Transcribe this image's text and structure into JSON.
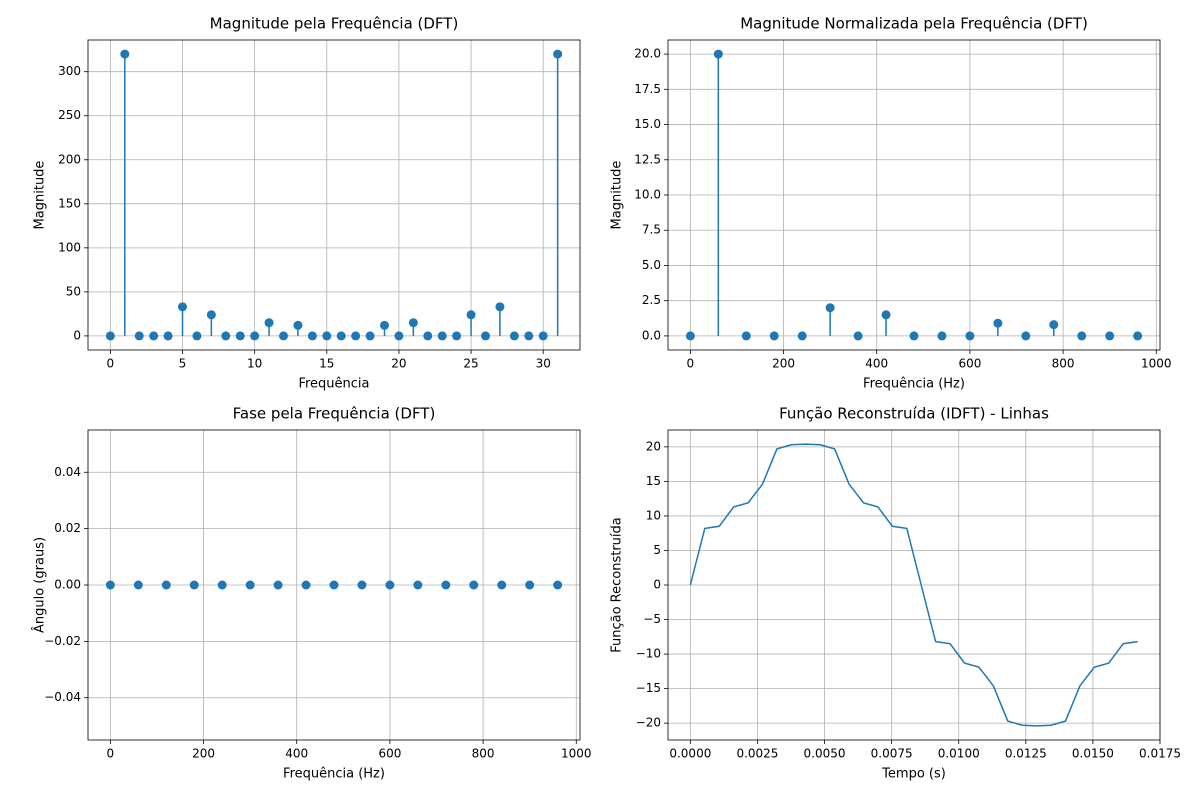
{
  "chart_data": [
    {
      "type": "stem",
      "title": "Magnitude pela Frequência (DFT)",
      "xlabel": "Frequência",
      "ylabel": "Magnitude",
      "x": [
        0,
        1,
        2,
        3,
        4,
        5,
        6,
        7,
        8,
        9,
        10,
        11,
        12,
        13,
        14,
        15,
        16,
        17,
        18,
        19,
        20,
        21,
        22,
        23,
        24,
        25,
        26,
        27,
        28,
        29,
        30,
        31
      ],
      "values": [
        0,
        320,
        0,
        0,
        0,
        33,
        0,
        24,
        0,
        0,
        0,
        15,
        0,
        12,
        0,
        0,
        0,
        0,
        0,
        12,
        0,
        15,
        0,
        0,
        0,
        24,
        0,
        33,
        0,
        0,
        0,
        320
      ],
      "color": "#1f77b4",
      "xlim": [
        -1.55,
        32.55
      ],
      "ylim": [
        -16,
        336
      ],
      "xticks": [
        0,
        5,
        10,
        15,
        20,
        25,
        30
      ],
      "yticks": [
        0,
        50,
        100,
        150,
        200,
        250,
        300
      ],
      "grid": true
    },
    {
      "type": "stem",
      "title": "Magnitude Normalizada pela Frequência (DFT)",
      "xlabel": "Frequência (Hz)",
      "ylabel": "Magnitude",
      "x": [
        0,
        60,
        120,
        180,
        240,
        300,
        360,
        420,
        480,
        540,
        600,
        660,
        720,
        780,
        840,
        900,
        960
      ],
      "values": [
        0,
        20,
        0,
        0,
        0,
        2,
        0,
        1.5,
        0,
        0,
        0,
        0.9,
        0,
        0.8,
        0,
        0,
        0
      ],
      "color": "#1f77b4",
      "xlim": [
        -48,
        1008
      ],
      "ylim": [
        -1,
        21
      ],
      "xticks": [
        0,
        200,
        400,
        600,
        800,
        1000
      ],
      "yticks": [
        {
          "value": 0,
          "label": "0.0"
        },
        {
          "value": 2.5,
          "label": "2.5"
        },
        {
          "value": 5,
          "label": "5.0"
        },
        {
          "value": 7.5,
          "label": "7.5"
        },
        {
          "value": 10,
          "label": "10.0"
        },
        {
          "value": 12.5,
          "label": "12.5"
        },
        {
          "value": 15,
          "label": "15.0"
        },
        {
          "value": 17.5,
          "label": "17.5"
        },
        {
          "value": 20,
          "label": "20.0"
        }
      ],
      "grid": true
    },
    {
      "type": "scatter",
      "title": "Fase pela Frequência (DFT)",
      "xlabel": "Frequência (Hz)",
      "ylabel": "Ângulo (graus)",
      "x": [
        0,
        60,
        120,
        180,
        240,
        300,
        360,
        420,
        480,
        540,
        600,
        660,
        720,
        780,
        840,
        900,
        960
      ],
      "values": [
        0,
        0,
        0,
        0,
        0,
        0,
        0,
        0,
        0,
        0,
        0,
        0,
        0,
        0,
        0,
        0,
        0
      ],
      "color": "#1f77b4",
      "xlim": [
        -48,
        1008
      ],
      "ylim": [
        -0.055,
        0.055
      ],
      "xticks": [
        0,
        200,
        400,
        600,
        800,
        1000
      ],
      "yticks": [
        {
          "value": -0.04,
          "label": "−0.04"
        },
        {
          "value": -0.02,
          "label": "−0.02"
        },
        {
          "value": 0,
          "label": "0.00"
        },
        {
          "value": 0.02,
          "label": "0.02"
        },
        {
          "value": 0.04,
          "label": "0.04"
        }
      ],
      "grid": true
    },
    {
      "type": "line",
      "title": "Função Reconstruída (IDFT) - Linhas",
      "xlabel": "Tempo (s)",
      "ylabel": "Função Reconstruída",
      "x": [
        0,
        0.000538,
        0.001075,
        0.001613,
        0.002151,
        0.002688,
        0.003226,
        0.003763,
        0.004301,
        0.004839,
        0.005376,
        0.005914,
        0.006452,
        0.006989,
        0.007527,
        0.008065,
        0.008602,
        0.00914,
        0.009677,
        0.010215,
        0.010753,
        0.01129,
        0.011828,
        0.012366,
        0.012903,
        0.013441,
        0.013978,
        0.014516,
        0.015054,
        0.015591,
        0.016129,
        0.016667
      ],
      "values": [
        0,
        8.2,
        8.5,
        11.3,
        11.9,
        14.6,
        19.7,
        20.3,
        20.4,
        20.3,
        19.7,
        14.6,
        11.9,
        11.3,
        8.5,
        8.2,
        0,
        -8.2,
        -8.5,
        -11.3,
        -11.9,
        -14.6,
        -19.7,
        -20.3,
        -20.4,
        -20.3,
        -19.7,
        -14.6,
        -11.9,
        -11.3,
        -8.5,
        -8.2
      ],
      "color": "#1f77b4",
      "xlim": [
        -0.000833,
        0.0175
      ],
      "ylim": [
        -22.44,
        22.44
      ],
      "xticks": [
        {
          "value": 0,
          "label": "0.0000"
        },
        {
          "value": 0.0025,
          "label": "0.0025"
        },
        {
          "value": 0.005,
          "label": "0.0050"
        },
        {
          "value": 0.0075,
          "label": "0.0075"
        },
        {
          "value": 0.01,
          "label": "0.0100"
        },
        {
          "value": 0.0125,
          "label": "0.0125"
        },
        {
          "value": 0.015,
          "label": "0.0150"
        },
        {
          "value": 0.0175,
          "label": "0.0175"
        }
      ],
      "yticks": [
        {
          "value": -20,
          "label": "−20"
        },
        {
          "value": -15,
          "label": "−15"
        },
        {
          "value": -10,
          "label": "−10"
        },
        {
          "value": -5,
          "label": "−5"
        },
        0,
        5,
        10,
        15,
        20
      ],
      "grid": true
    }
  ]
}
